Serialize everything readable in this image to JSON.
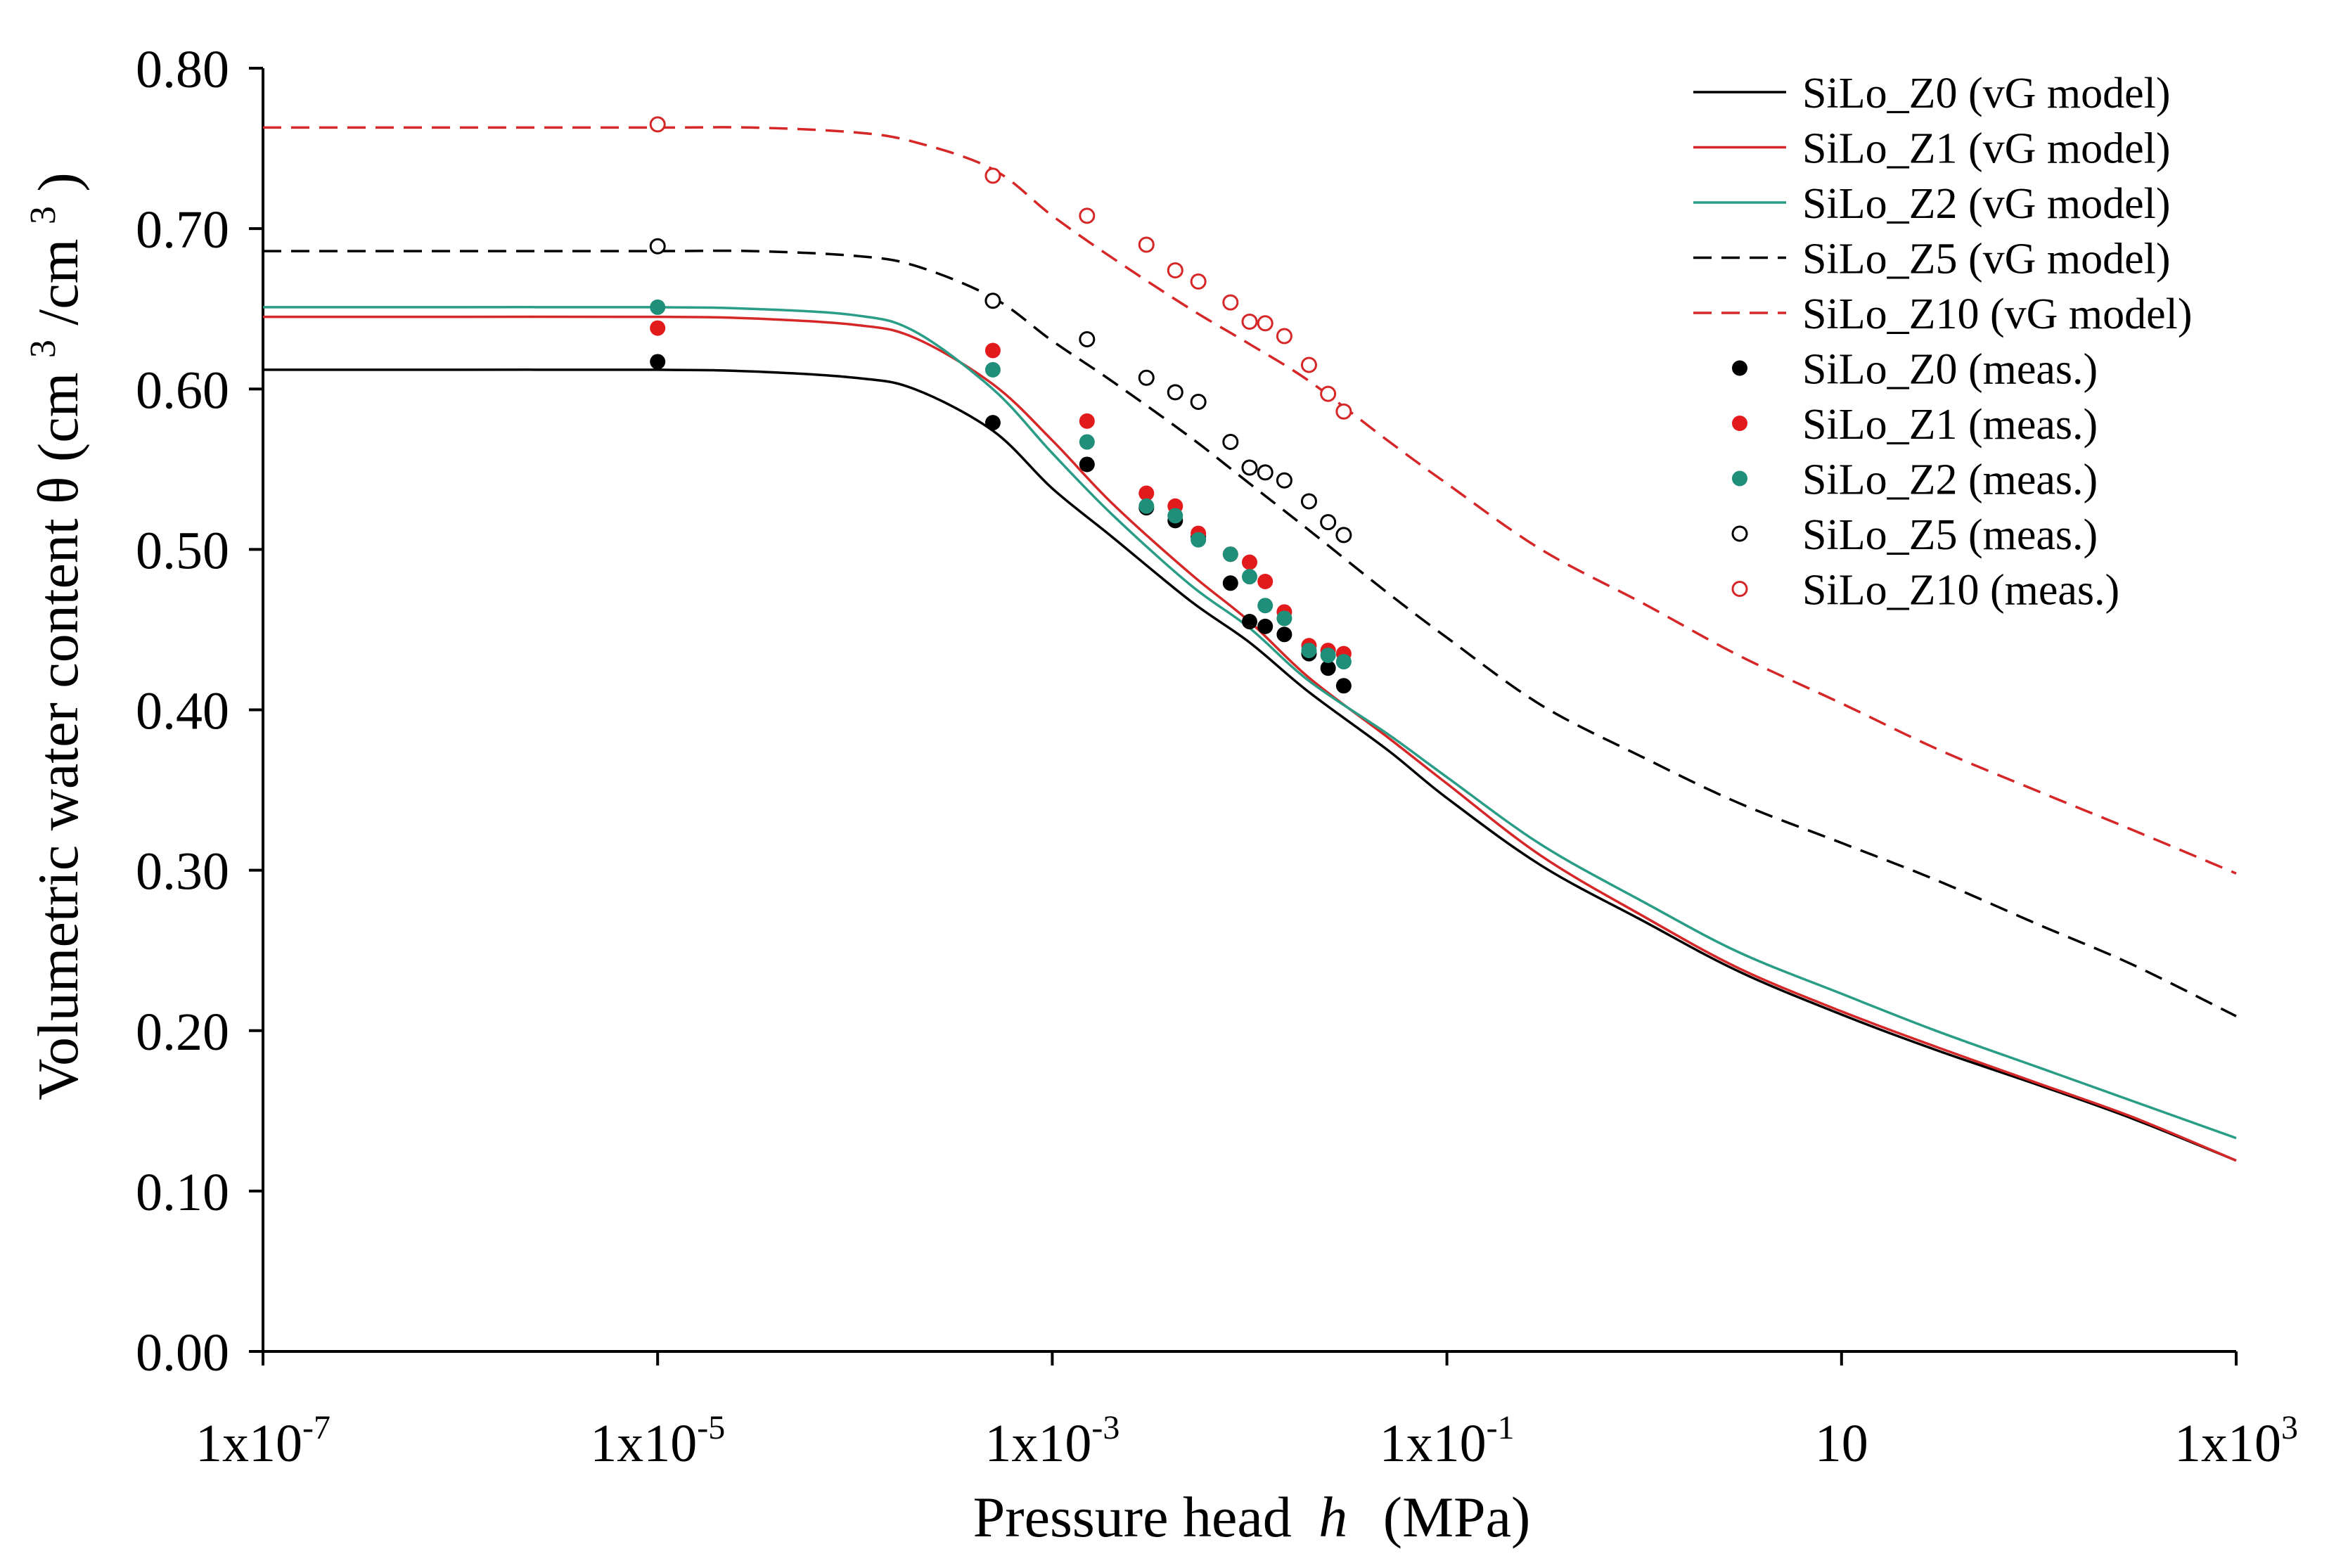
{
  "chart_data": {
    "type": "line",
    "title": "",
    "xlabel": "Pressure head",
    "xlabel_symbol": "h",
    "xlabel_unit": "(MPa)",
    "ylabel": "Volumetric water content θ (cm",
    "ylabel_sup1": "3",
    "ylabel_mid": "/cm",
    "ylabel_sup2": "3",
    "ylabel_end": ")",
    "x_scale": "log10",
    "xlim": [
      1e-07,
      1000
    ],
    "ylim": [
      0.0,
      0.8
    ],
    "x_ticks": [
      {
        "value": 1e-07,
        "base": "1x10",
        "exp": "-7"
      },
      {
        "value": 1e-05,
        "base": "1x10",
        "exp": "-5"
      },
      {
        "value": 0.001,
        "base": "1x10",
        "exp": "-3"
      },
      {
        "value": 0.1,
        "base": "1x10",
        "exp": "-1"
      },
      {
        "value": 10,
        "base": "10",
        "exp": ""
      },
      {
        "value": 1000,
        "base": "1x10",
        "exp": "3"
      }
    ],
    "y_ticks": [
      {
        "value": 0.0,
        "label": "0.00"
      },
      {
        "value": 0.1,
        "label": "0.10"
      },
      {
        "value": 0.2,
        "label": "0.20"
      },
      {
        "value": 0.3,
        "label": "0.30"
      },
      {
        "value": 0.4,
        "label": "0.40"
      },
      {
        "value": 0.5,
        "label": "0.50"
      },
      {
        "value": 0.6,
        "label": "0.60"
      },
      {
        "value": 0.7,
        "label": "0.70"
      },
      {
        "value": 0.8,
        "label": "0.80"
      }
    ],
    "grid": false,
    "legend_position": "top-right",
    "model_x": [
      1e-07,
      1e-06,
      1e-05,
      3e-05,
      0.0001,
      0.0002,
      0.0005,
      0.001,
      0.002,
      0.005,
      0.01,
      0.02,
      0.05,
      0.1,
      0.3,
      1,
      3,
      10,
      30,
      100,
      300,
      1000
    ],
    "models": [
      {
        "name": "SiLo_Z0 (vG model)",
        "color": "#000000",
        "dash": "solid",
        "y": [
          0.612,
          0.612,
          0.612,
          0.611,
          0.607,
          0.6,
          0.574,
          0.538,
          0.508,
          0.468,
          0.442,
          0.411,
          0.375,
          0.345,
          0.303,
          0.268,
          0.237,
          0.21,
          0.188,
          0.166,
          0.145,
          0.119
        ]
      },
      {
        "name": "SiLo_Z1 (vG model)",
        "color": "#d62728",
        "dash": "solid",
        "y": [
          0.645,
          0.645,
          0.645,
          0.644,
          0.64,
          0.632,
          0.603,
          0.568,
          0.529,
          0.485,
          0.455,
          0.42,
          0.383,
          0.354,
          0.309,
          0.271,
          0.239,
          0.212,
          0.19,
          0.167,
          0.146,
          0.119
        ]
      },
      {
        "name": "SiLo_Z2 (vG model)",
        "color": "#2a9d86",
        "dash": "solid",
        "y": [
          0.651,
          0.651,
          0.651,
          0.65,
          0.646,
          0.636,
          0.6,
          0.56,
          0.522,
          0.478,
          0.451,
          0.418,
          0.385,
          0.358,
          0.316,
          0.28,
          0.249,
          0.223,
          0.2,
          0.177,
          0.156,
          0.133
        ]
      },
      {
        "name": "SiLo_Z5 (vG model)",
        "color": "#000000",
        "dash": "dashed",
        "y": [
          0.686,
          0.686,
          0.686,
          0.686,
          0.683,
          0.677,
          0.657,
          0.63,
          0.605,
          0.57,
          0.541,
          0.512,
          0.473,
          0.445,
          0.403,
          0.37,
          0.342,
          0.317,
          0.294,
          0.266,
          0.241,
          0.209
        ]
      },
      {
        "name": "SiLo_Z10 (vG model)",
        "color": "#d62728",
        "dash": "dashed",
        "y": [
          0.763,
          0.763,
          0.763,
          0.763,
          0.76,
          0.754,
          0.737,
          0.708,
          0.682,
          0.65,
          0.628,
          0.605,
          0.568,
          0.541,
          0.5,
          0.466,
          0.434,
          0.404,
          0.376,
          0.349,
          0.325,
          0.298
        ]
      }
    ],
    "measured": [
      {
        "name": "SiLo_Z0 (meas.)",
        "style": "filled",
        "color": "#000000",
        "points": [
          [
            1e-05,
            0.617
          ],
          [
            0.0005,
            0.579
          ],
          [
            0.0015,
            0.553
          ],
          [
            0.003,
            0.526
          ],
          [
            0.0042,
            0.518
          ],
          [
            0.0055,
            0.508
          ],
          [
            0.008,
            0.479
          ],
          [
            0.01,
            0.455
          ],
          [
            0.012,
            0.452
          ],
          [
            0.015,
            0.447
          ],
          [
            0.02,
            0.435
          ],
          [
            0.025,
            0.426
          ],
          [
            0.03,
            0.415
          ]
        ]
      },
      {
        "name": "SiLo_Z1 (meas.)",
        "style": "filled",
        "color": "#e31a1c",
        "points": [
          [
            1e-05,
            0.638
          ],
          [
            0.0005,
            0.624
          ],
          [
            0.0015,
            0.58
          ],
          [
            0.003,
            0.535
          ],
          [
            0.0042,
            0.527
          ],
          [
            0.0055,
            0.51
          ],
          [
            0.008,
            0.497
          ],
          [
            0.01,
            0.492
          ],
          [
            0.012,
            0.48
          ],
          [
            0.015,
            0.461
          ],
          [
            0.02,
            0.44
          ],
          [
            0.025,
            0.437
          ],
          [
            0.03,
            0.435
          ]
        ]
      },
      {
        "name": "SiLo_Z2 (meas.)",
        "style": "filled",
        "color": "#1f8f7a",
        "points": [
          [
            1e-05,
            0.651
          ],
          [
            0.0005,
            0.612
          ],
          [
            0.0015,
            0.567
          ],
          [
            0.003,
            0.527
          ],
          [
            0.0042,
            0.521
          ],
          [
            0.0055,
            0.506
          ],
          [
            0.008,
            0.497
          ],
          [
            0.01,
            0.483
          ],
          [
            0.012,
            0.465
          ],
          [
            0.015,
            0.457
          ],
          [
            0.02,
            0.437
          ],
          [
            0.025,
            0.434
          ],
          [
            0.03,
            0.43
          ]
        ]
      },
      {
        "name": "SiLo_Z5 (meas.)",
        "style": "open",
        "color": "#000000",
        "points": [
          [
            1e-05,
            0.689
          ],
          [
            0.0005,
            0.655
          ],
          [
            0.0015,
            0.631
          ],
          [
            0.003,
            0.607
          ],
          [
            0.0042,
            0.598
          ],
          [
            0.0055,
            0.592
          ],
          [
            0.008,
            0.567
          ],
          [
            0.01,
            0.551
          ],
          [
            0.012,
            0.548
          ],
          [
            0.015,
            0.543
          ],
          [
            0.02,
            0.53
          ],
          [
            0.025,
            0.517
          ],
          [
            0.03,
            0.509
          ]
        ]
      },
      {
        "name": "SiLo_Z10 (meas.)",
        "style": "open",
        "color": "#d62728",
        "points": [
          [
            1e-05,
            0.765
          ],
          [
            0.0005,
            0.733
          ],
          [
            0.0015,
            0.708
          ],
          [
            0.003,
            0.69
          ],
          [
            0.0042,
            0.674
          ],
          [
            0.0055,
            0.667
          ],
          [
            0.008,
            0.654
          ],
          [
            0.01,
            0.642
          ],
          [
            0.012,
            0.641
          ],
          [
            0.015,
            0.633
          ],
          [
            0.02,
            0.615
          ],
          [
            0.025,
            0.597
          ],
          [
            0.03,
            0.586
          ]
        ]
      }
    ]
  }
}
